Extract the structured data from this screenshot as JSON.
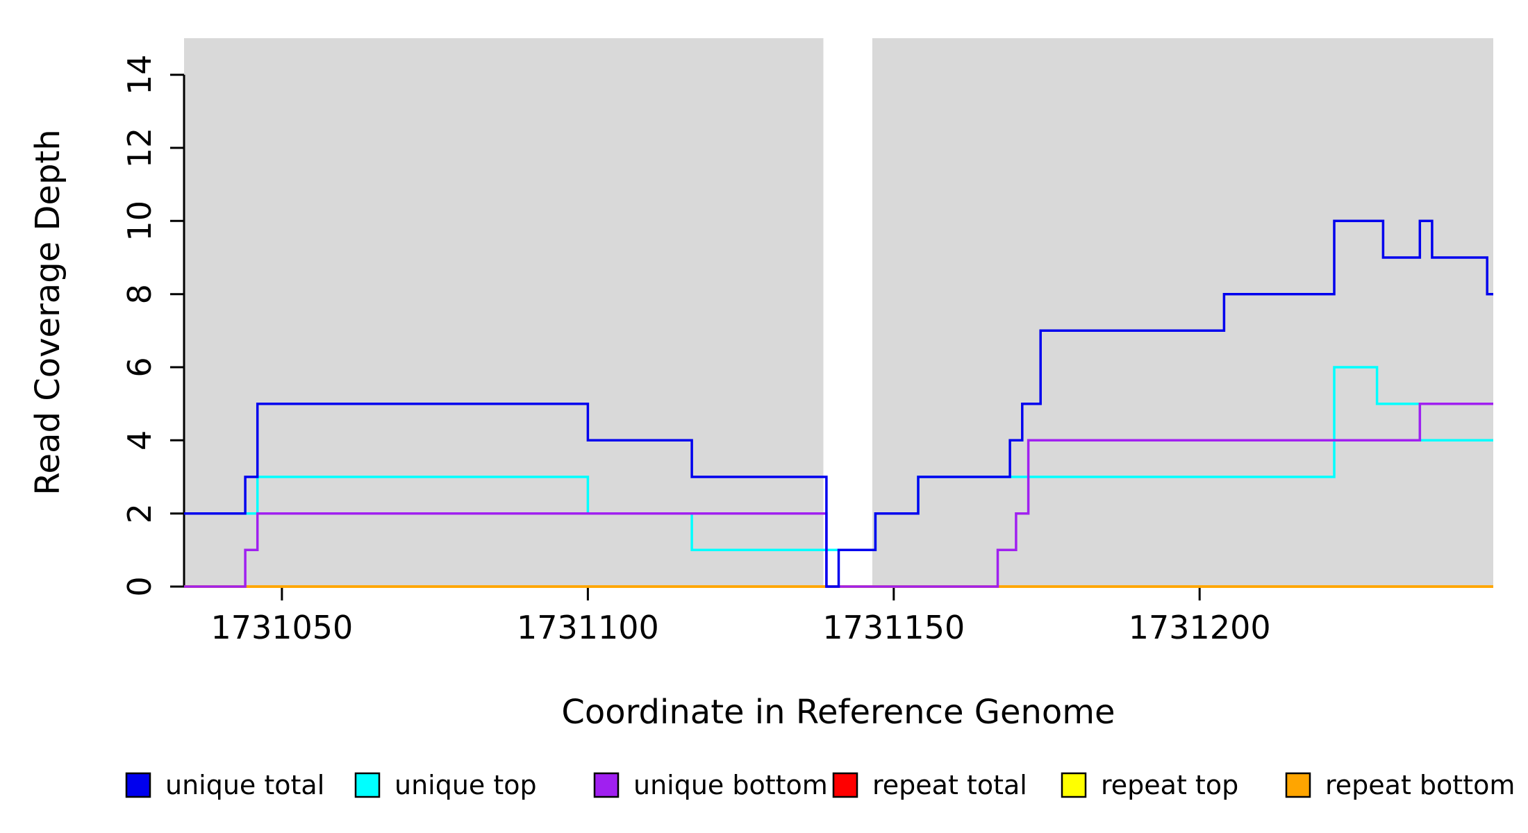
{
  "chart_data": {
    "type": "line",
    "style": "step",
    "title": "",
    "xlabel": "Coordinate in Reference Genome",
    "ylabel": "Read Coverage Depth",
    "xlim": [
      1731034,
      1731248
    ],
    "ylim": [
      0,
      15
    ],
    "xticks": [
      1731050,
      1731100,
      1731150,
      1731200
    ],
    "yticks": [
      0,
      2,
      4,
      6,
      8,
      10,
      12,
      14
    ],
    "grid": false,
    "background_regions": [
      {
        "x0": 1731034,
        "x1": 1731138.5,
        "color": "#D9D9D9"
      },
      {
        "x0": 1731146.5,
        "x1": 1731248,
        "color": "#D9D9D9"
      }
    ],
    "series": [
      {
        "name": "repeat total",
        "color": "#FF0000",
        "steps": [
          [
            1731034,
            0
          ]
        ]
      },
      {
        "name": "repeat top",
        "color": "#FFFF00",
        "steps": [
          [
            1731034,
            0
          ]
        ]
      },
      {
        "name": "repeat bottom",
        "color": "#FFA500",
        "steps": [
          [
            1731034,
            0
          ]
        ]
      },
      {
        "name": "unique top",
        "color": "#00FFFF",
        "steps": [
          [
            1731034,
            2
          ],
          [
            1731046,
            3
          ],
          [
            1731100,
            2
          ],
          [
            1731117,
            1
          ],
          [
            1731147,
            2
          ],
          [
            1731154,
            3
          ],
          [
            1731222,
            6
          ],
          [
            1731229,
            5
          ],
          [
            1731236,
            4
          ]
        ]
      },
      {
        "name": "unique bottom",
        "color": "#A020F0",
        "steps": [
          [
            1731034,
            0
          ],
          [
            1731044,
            1
          ],
          [
            1731046,
            2
          ],
          [
            1731139,
            0
          ],
          [
            1731167,
            1
          ],
          [
            1731170,
            2
          ],
          [
            1731172,
            4
          ],
          [
            1731236,
            5
          ]
        ]
      },
      {
        "name": "unique total",
        "color": "#0000EE",
        "steps": [
          [
            1731034,
            2
          ],
          [
            1731044,
            3
          ],
          [
            1731046,
            5
          ],
          [
            1731100,
            4
          ],
          [
            1731117,
            3
          ],
          [
            1731139,
            0
          ],
          [
            1731141,
            1
          ],
          [
            1731147,
            2
          ],
          [
            1731154,
            3
          ],
          [
            1731169,
            4
          ],
          [
            1731171,
            5
          ],
          [
            1731174,
            7
          ],
          [
            1731204,
            8
          ],
          [
            1731222,
            10
          ],
          [
            1731230,
            9
          ],
          [
            1731236,
            10
          ],
          [
            1731238,
            9
          ],
          [
            1731247,
            8
          ]
        ]
      }
    ]
  },
  "legend": {
    "position": "bottom",
    "items": [
      {
        "label": "unique total",
        "color": "#0000EE"
      },
      {
        "label": "unique top",
        "color": "#00FFFF"
      },
      {
        "label": "unique bottom",
        "color": "#A020F0"
      },
      {
        "label": "repeat total",
        "color": "#FF0000"
      },
      {
        "label": "repeat top",
        "color": "#FFFF00"
      },
      {
        "label": "repeat bottom",
        "color": "#FFA500"
      }
    ]
  }
}
